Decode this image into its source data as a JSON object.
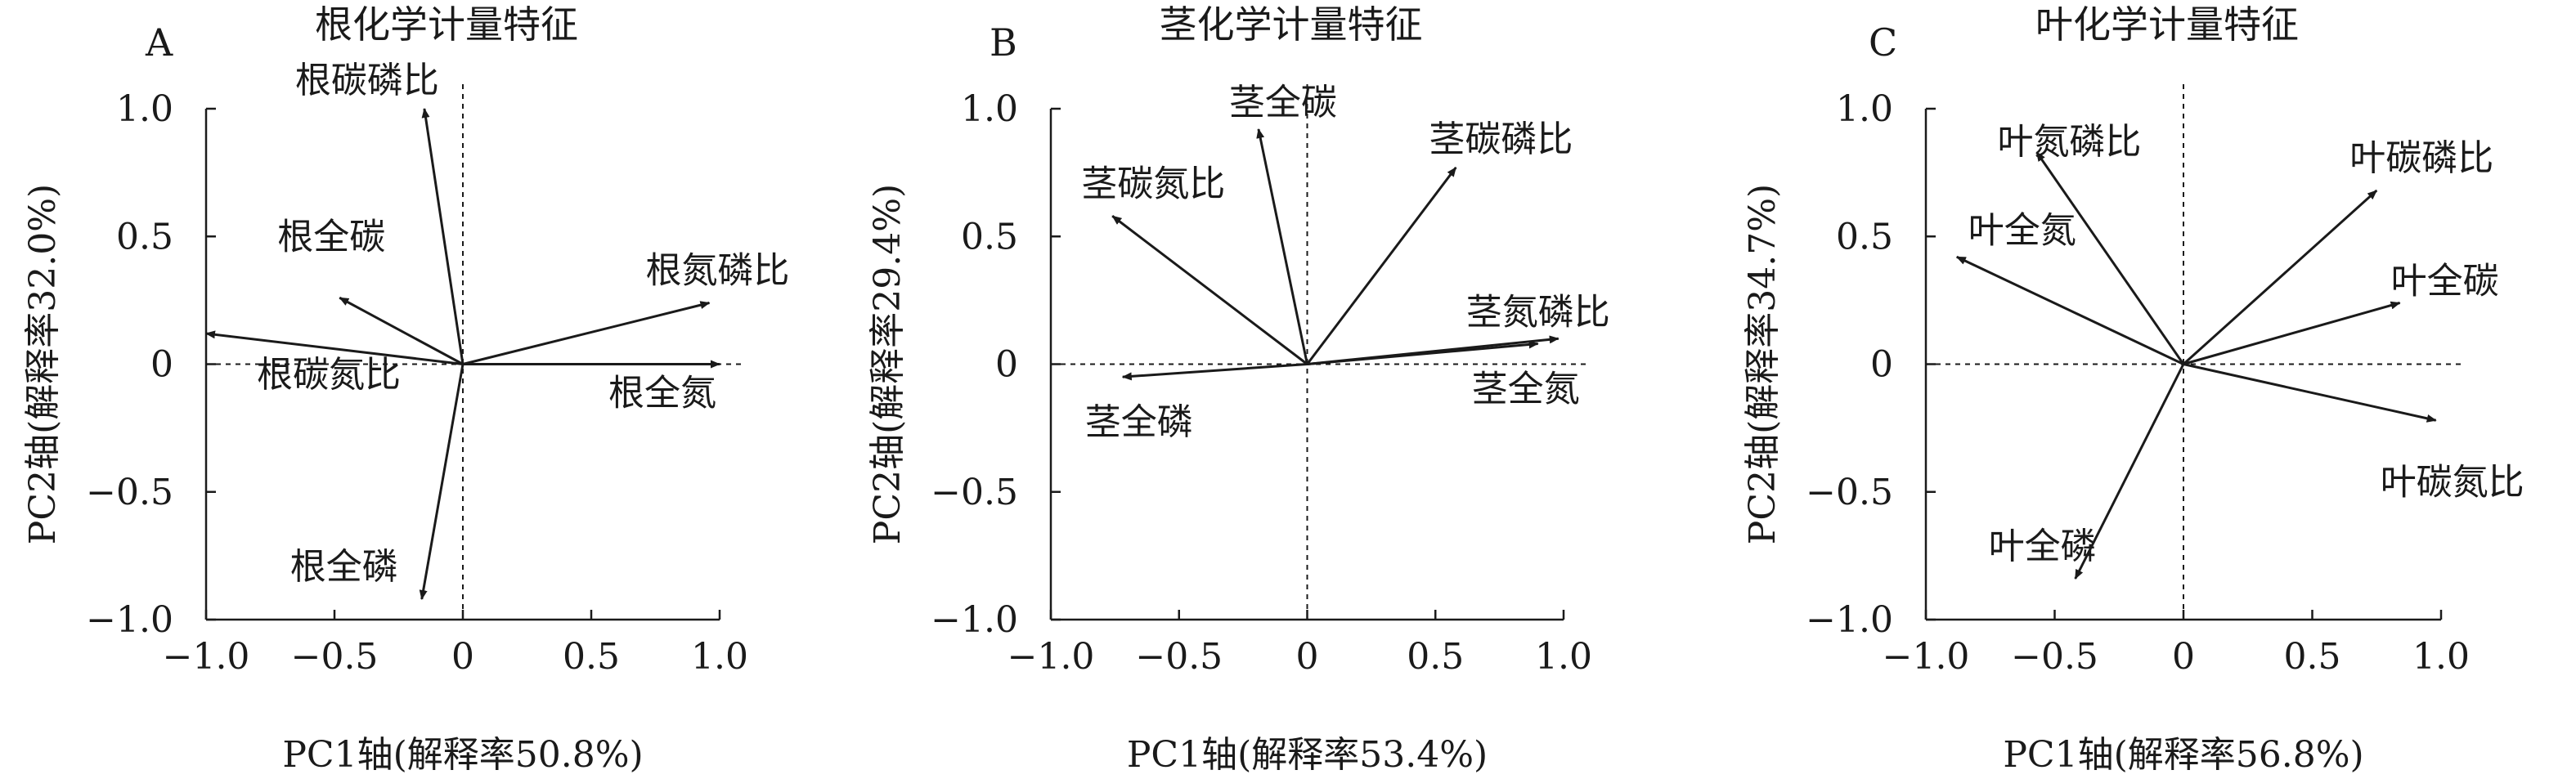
{
  "chart_data": [
    {
      "type": "scatter",
      "subtype": "pca-loading-biplot",
      "panel": "A",
      "title": "根化学计量特征",
      "xlabel": "PC1轴(解释率50.8%)",
      "ylabel": "PC2轴(解释率32.0%)",
      "xlim": [
        -1.0,
        1.0
      ],
      "ylim": [
        -1.0,
        1.0
      ],
      "xticks": [
        "−1.0",
        "−0.5",
        "0",
        "0.5",
        "1.0"
      ],
      "yticks": [
        "1.0",
        "0.5",
        "0",
        "−0.5",
        "−1.0"
      ],
      "grid": false,
      "vectors": [
        {
          "label": "根碳磷比",
          "x": -0.15,
          "y": 1.0
        },
        {
          "label": "根全碳",
          "x": -0.48,
          "y": 0.26
        },
        {
          "label": "根氮磷比",
          "x": 0.96,
          "y": 0.24
        },
        {
          "label": "根碳氮比",
          "x": -1.0,
          "y": 0.12
        },
        {
          "label": "根全氮",
          "x": 1.0,
          "y": 0.0
        },
        {
          "label": "根全磷",
          "x": -0.16,
          "y": -0.92
        }
      ]
    },
    {
      "type": "scatter",
      "subtype": "pca-loading-biplot",
      "panel": "B",
      "title": "茎化学计量特征",
      "xlabel": "PC1轴(解释率53.4%)",
      "ylabel": "PC2轴(解释率29.4%)",
      "xlim": [
        -1.0,
        1.0
      ],
      "ylim": [
        -1.0,
        1.0
      ],
      "xticks": [
        "−1.0",
        "−0.5",
        "0",
        "0.5",
        "1.0"
      ],
      "yticks": [
        "1.0",
        "0.5",
        "0",
        "−0.5",
        "−1.0"
      ],
      "grid": false,
      "vectors": [
        {
          "label": "茎全碳",
          "x": -0.19,
          "y": 0.92
        },
        {
          "label": "茎碳磷比",
          "x": 0.58,
          "y": 0.77
        },
        {
          "label": "茎碳氮比",
          "x": -0.76,
          "y": 0.58
        },
        {
          "label": "茎氮磷比",
          "x": 0.98,
          "y": 0.1
        },
        {
          "label": "茎全氮",
          "x": 0.9,
          "y": 0.08
        },
        {
          "label": "茎全磷",
          "x": -0.72,
          "y": -0.05
        }
      ]
    },
    {
      "type": "scatter",
      "subtype": "pca-loading-biplot",
      "panel": "C",
      "title": "叶化学计量特征",
      "xlabel": "PC1轴(解释率56.8%)",
      "ylabel": "PC2轴(解释率34.7%)",
      "xlim": [
        -1.0,
        1.0
      ],
      "ylim": [
        -1.0,
        1.0
      ],
      "xticks": [
        "−1.0",
        "−0.5",
        "0",
        "0.5",
        "1.0"
      ],
      "yticks": [
        "1.0",
        "0.5",
        "0",
        "−0.5",
        "−1.0"
      ],
      "grid": false,
      "vectors": [
        {
          "label": "叶氮磷比",
          "x": -0.57,
          "y": 0.83
        },
        {
          "label": "叶碳磷比",
          "x": 0.75,
          "y": 0.68
        },
        {
          "label": "叶全氮",
          "x": -0.88,
          "y": 0.42
        },
        {
          "label": "叶全碳",
          "x": 0.84,
          "y": 0.24
        },
        {
          "label": "叶碳氮比",
          "x": 0.98,
          "y": -0.22
        },
        {
          "label": "叶全磷",
          "x": -0.42,
          "y": -0.84
        }
      ]
    }
  ]
}
